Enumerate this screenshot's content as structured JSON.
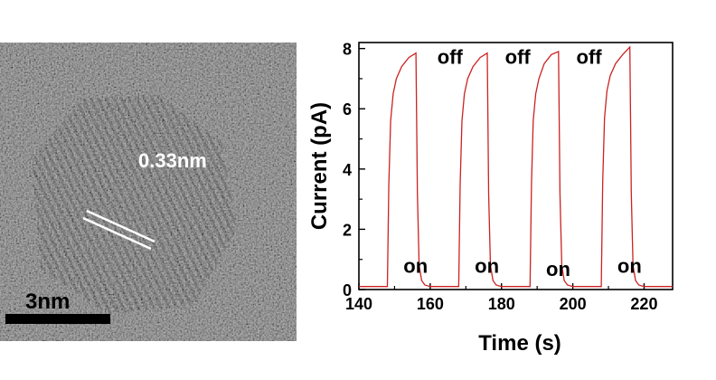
{
  "tem_image": {
    "lattice_spacing_label": "0.33nm",
    "scale_bar_label": "3nm",
    "colors": {
      "background": "#5e5e5e",
      "fringe": "#2e2e2e",
      "annotation": "#ffffff",
      "scale_bar": "#000000"
    }
  },
  "chart_data": {
    "type": "line",
    "xlabel": "Time (s)",
    "ylabel": "Current (pA)",
    "xlim": [
      140,
      228
    ],
    "ylim": [
      0,
      8.2
    ],
    "xticks": [
      140,
      160,
      180,
      200,
      220
    ],
    "yticks": [
      0,
      2,
      4,
      6,
      8
    ],
    "grid": false,
    "legend": "none",
    "series": [
      {
        "color": "#cc2222",
        "x": [
          140,
          148,
          148.4,
          148.9,
          149.6,
          150.5,
          152,
          154,
          156,
          156.4,
          156.9,
          157.6,
          158.5,
          160,
          168,
          168.4,
          168.9,
          169.6,
          170.5,
          172,
          174,
          176,
          176.4,
          176.9,
          177.6,
          178.5,
          180,
          188,
          188.4,
          188.9,
          189.6,
          190.5,
          192,
          194,
          196,
          196.4,
          196.9,
          197.6,
          198.5,
          200,
          208,
          208.4,
          208.9,
          209.6,
          210.5,
          212,
          214,
          216,
          216.4,
          216.9,
          217.6,
          218.5,
          220,
          228
        ],
        "y": [
          0.1,
          0.1,
          3.5,
          5.6,
          6.5,
          7.0,
          7.4,
          7.7,
          7.85,
          3.2,
          0.8,
          0.3,
          0.15,
          0.1,
          0.1,
          3.5,
          5.6,
          6.5,
          7.0,
          7.4,
          7.7,
          7.85,
          3.2,
          0.8,
          0.3,
          0.15,
          0.1,
          0.1,
          3.5,
          5.6,
          6.5,
          7.0,
          7.5,
          7.8,
          7.9,
          3.2,
          0.8,
          0.3,
          0.15,
          0.1,
          0.1,
          3.6,
          5.7,
          6.6,
          7.1,
          7.5,
          7.8,
          8.05,
          3.2,
          0.8,
          0.3,
          0.15,
          0.1,
          0.1
        ]
      }
    ],
    "annotations": [
      {
        "text": "off",
        "x": 162,
        "y": 7.5
      },
      {
        "text": "off",
        "x": 181,
        "y": 7.5
      },
      {
        "text": "off",
        "x": 201,
        "y": 7.5
      },
      {
        "text": "on",
        "x": 152.5,
        "y": 0.55
      },
      {
        "text": "on",
        "x": 172.5,
        "y": 0.55
      },
      {
        "text": "on",
        "x": 192.5,
        "y": 0.45
      },
      {
        "text": "on",
        "x": 212.5,
        "y": 0.55
      }
    ]
  }
}
